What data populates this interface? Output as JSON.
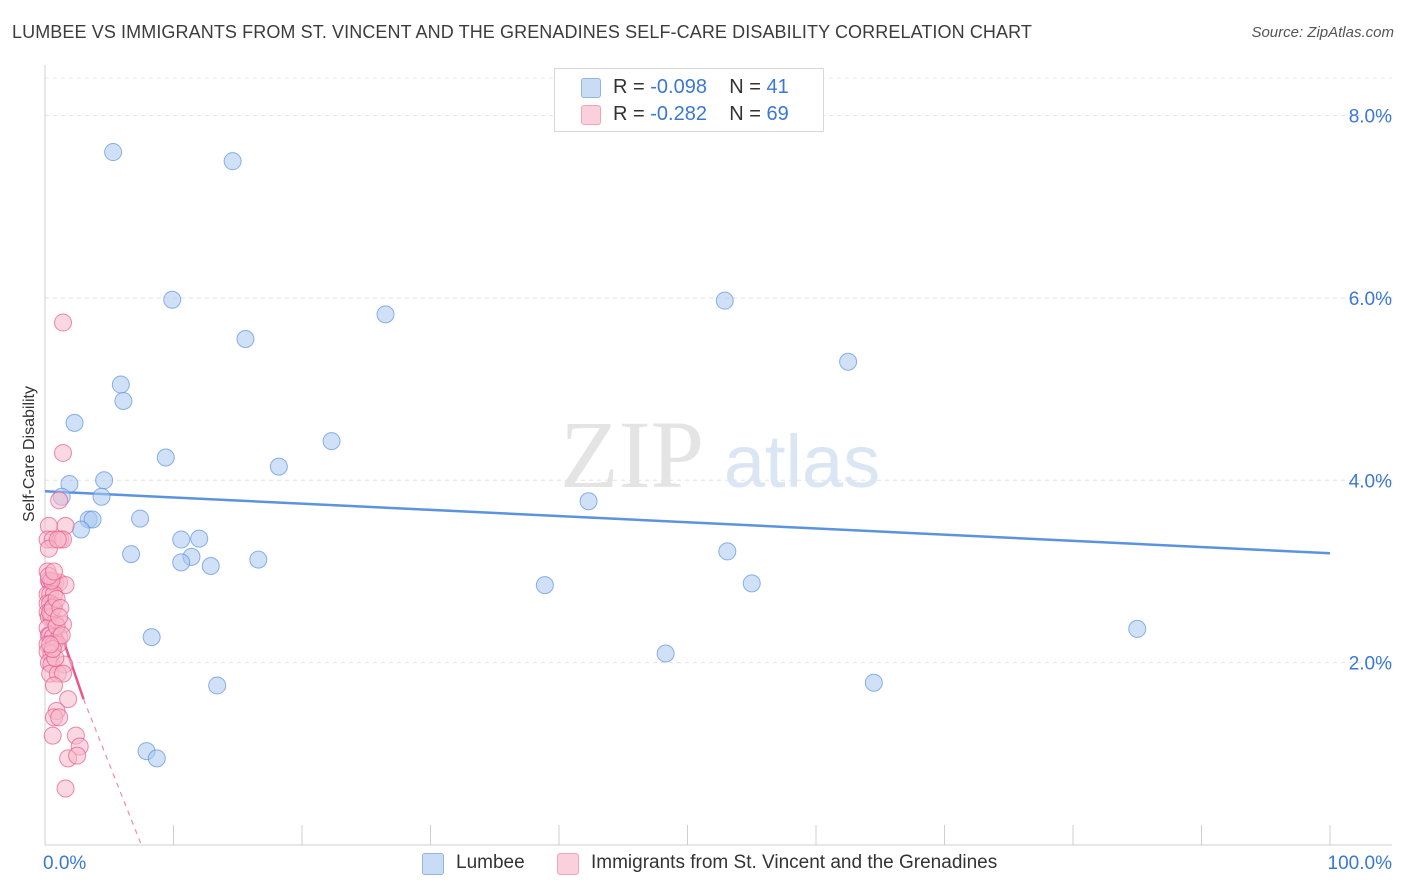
{
  "title": "LUMBEE VS IMMIGRANTS FROM ST. VINCENT AND THE GRENADINES SELF-CARE DISABILITY CORRELATION CHART",
  "source": "Source: ZipAtlas.com",
  "watermark": {
    "zip": "ZIP",
    "atlas": "atlas"
  },
  "legend": {
    "r_label": "R =",
    "n_label": "N =",
    "rows": [
      {
        "r": "-0.098",
        "n": "41",
        "color": "#a9c8f0"
      },
      {
        "r": "-0.282",
        "n": "69",
        "color": "#f6b8cb"
      }
    ]
  },
  "bottom_legend": [
    {
      "label": "Lumbee",
      "color": "#a9c8f0"
    },
    {
      "label": "Immigrants from St. Vincent and the Grenadines",
      "color": "#f6b8cb"
    }
  ],
  "chart_data": {
    "type": "scatter",
    "title": "LUMBEE VS IMMIGRANTS FROM ST. VINCENT AND THE GRENADINES SELF-CARE DISABILITY CORRELATION CHART",
    "xlabel": "",
    "ylabel": "Self-Care Disability",
    "xlim": [
      0,
      100
    ],
    "ylim": [
      0,
      8.5
    ],
    "x_tick_labels": [
      "0.0%",
      "100.0%"
    ],
    "y_ticks": [
      2,
      4,
      6,
      8
    ],
    "y_tick_labels": [
      "2.0%",
      "4.0%",
      "6.0%",
      "8.0%"
    ],
    "grid": true,
    "legend_position": "top-center",
    "series": [
      {
        "name": "Lumbee",
        "color": "#5b93e0",
        "fill": "#a9c8f0",
        "trend": {
          "x": [
            0,
            100
          ],
          "y": [
            3.88,
            3.2
          ]
        },
        "points": [
          [
            5.3,
            7.6
          ],
          [
            14.6,
            7.5
          ],
          [
            9.9,
            5.98
          ],
          [
            26.5,
            5.82
          ],
          [
            15.6,
            5.55
          ],
          [
            5.9,
            5.05
          ],
          [
            6.1,
            4.87
          ],
          [
            2.3,
            4.63
          ],
          [
            22.3,
            4.43
          ],
          [
            9.4,
            4.25
          ],
          [
            18.2,
            4.15
          ],
          [
            1.9,
            3.96
          ],
          [
            4.6,
            4.0
          ],
          [
            1.3,
            3.82
          ],
          [
            4.4,
            3.82
          ],
          [
            3.4,
            3.57
          ],
          [
            3.7,
            3.57
          ],
          [
            7.4,
            3.58
          ],
          [
            2.8,
            3.46
          ],
          [
            10.6,
            3.35
          ],
          [
            12.0,
            3.36
          ],
          [
            6.7,
            3.19
          ],
          [
            11.4,
            3.16
          ],
          [
            10.6,
            3.1
          ],
          [
            12.9,
            3.06
          ],
          [
            16.6,
            3.13
          ],
          [
            0.5,
            2.9
          ],
          [
            0.4,
            2.57
          ],
          [
            8.3,
            2.28
          ],
          [
            13.4,
            1.75
          ],
          [
            7.9,
            1.03
          ],
          [
            8.7,
            0.95
          ],
          [
            52.9,
            5.97
          ],
          [
            62.5,
            5.3
          ],
          [
            42.3,
            3.77
          ],
          [
            53.1,
            3.22
          ],
          [
            38.9,
            2.85
          ],
          [
            55.0,
            2.87
          ],
          [
            48.3,
            2.1
          ],
          [
            64.5,
            1.78
          ],
          [
            85.0,
            2.37
          ]
        ]
      },
      {
        "name": "Immigrants from St. Vincent and the Grenadines",
        "color": "#e8588a",
        "fill": "#f6b8cb",
        "trend": {
          "x": [
            0.2,
            3.0
          ],
          "y": [
            2.75,
            1.6
          ]
        },
        "trend_extension": {
          "x": [
            3.0,
            7.5
          ],
          "y": [
            1.6,
            -0.3
          ]
        },
        "points": [
          [
            1.4,
            5.73
          ],
          [
            1.4,
            4.3
          ],
          [
            1.1,
            3.78
          ],
          [
            0.3,
            3.5
          ],
          [
            1.6,
            3.5
          ],
          [
            0.2,
            3.35
          ],
          [
            0.6,
            3.35
          ],
          [
            1.2,
            3.35
          ],
          [
            1.4,
            3.35
          ],
          [
            0.3,
            3.25
          ],
          [
            0.2,
            3.0
          ],
          [
            0.3,
            2.9
          ],
          [
            0.4,
            2.88
          ],
          [
            0.6,
            2.88
          ],
          [
            0.8,
            2.88
          ],
          [
            1.1,
            2.88
          ],
          [
            1.6,
            2.85
          ],
          [
            0.2,
            2.75
          ],
          [
            0.4,
            2.75
          ],
          [
            0.7,
            2.75
          ],
          [
            0.2,
            2.65
          ],
          [
            0.4,
            2.65
          ],
          [
            0.7,
            2.62
          ],
          [
            0.2,
            2.55
          ],
          [
            0.3,
            2.5
          ],
          [
            0.5,
            2.5
          ],
          [
            0.8,
            2.45
          ],
          [
            1.4,
            2.42
          ],
          [
            0.2,
            2.38
          ],
          [
            0.3,
            2.3
          ],
          [
            0.4,
            2.3
          ],
          [
            0.6,
            2.28
          ],
          [
            1.1,
            2.28
          ],
          [
            0.2,
            2.2
          ],
          [
            0.7,
            2.2
          ],
          [
            1.0,
            2.2
          ],
          [
            0.2,
            2.12
          ],
          [
            0.5,
            2.1
          ],
          [
            0.3,
            2.0
          ],
          [
            0.5,
            1.98
          ],
          [
            1.5,
            1.98
          ],
          [
            0.4,
            1.88
          ],
          [
            1.0,
            1.88
          ],
          [
            1.4,
            1.88
          ],
          [
            0.7,
            1.75
          ],
          [
            1.8,
            1.6
          ],
          [
            0.9,
            1.47
          ],
          [
            0.7,
            1.4
          ],
          [
            1.1,
            1.4
          ],
          [
            0.6,
            1.2
          ],
          [
            2.4,
            1.2
          ],
          [
            2.7,
            1.08
          ],
          [
            1.8,
            0.95
          ],
          [
            2.5,
            0.98
          ],
          [
            1.6,
            0.62
          ],
          [
            0.4,
            2.55
          ],
          [
            0.6,
            2.6
          ],
          [
            0.9,
            2.7
          ],
          [
            1.2,
            2.6
          ],
          [
            0.5,
            2.9
          ],
          [
            0.3,
            2.95
          ],
          [
            0.9,
            2.4
          ],
          [
            1.3,
            2.3
          ],
          [
            0.8,
            2.05
          ],
          [
            0.6,
            2.15
          ],
          [
            1.1,
            2.5
          ],
          [
            0.4,
            2.2
          ],
          [
            0.7,
            3.0
          ],
          [
            1.0,
            3.35
          ]
        ]
      }
    ]
  }
}
